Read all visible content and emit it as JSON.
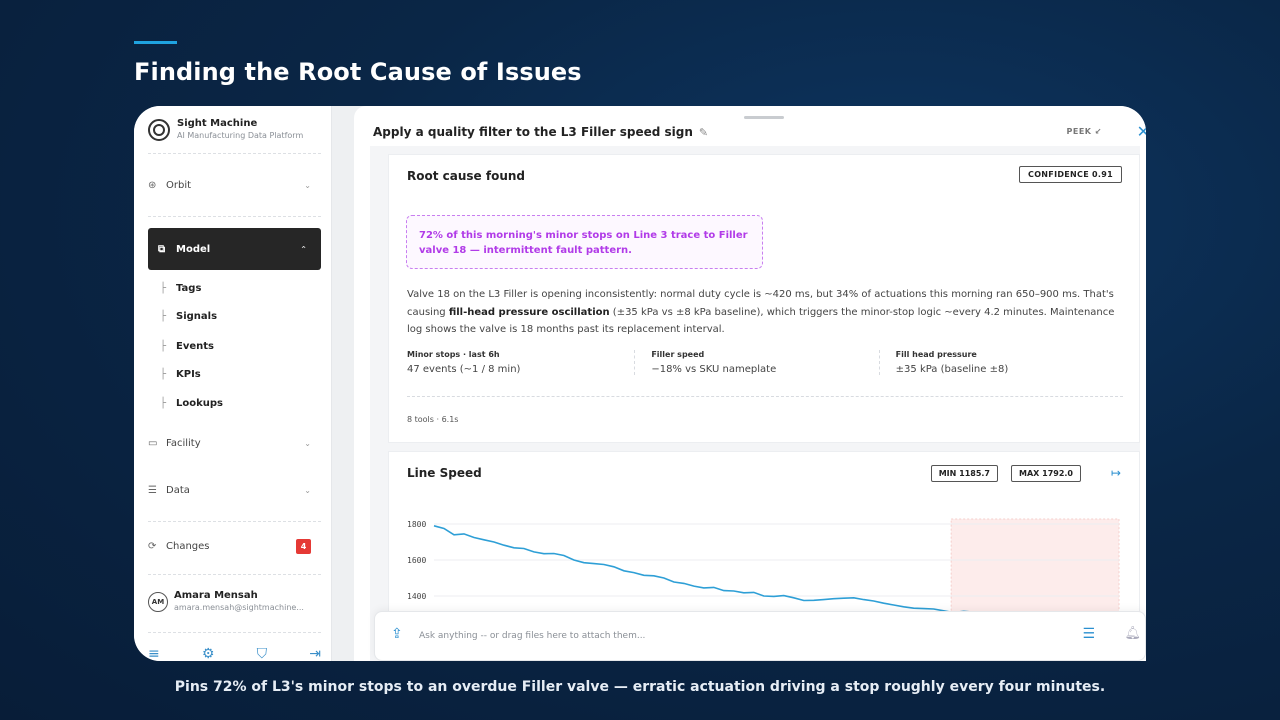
{
  "slide": {
    "title": "Finding the Root Cause of Issues",
    "caption": "Pins 72% of L3's minor stops to an overdue Filler valve — erratic actuation driving a stop roughly every four minutes."
  },
  "sidebar": {
    "brand_name": "Sight Machine",
    "brand_sub": "AI Manufacturing Data Platform",
    "orbit": "Orbit",
    "model": "Model",
    "model_items": [
      "Tags",
      "Signals",
      "Events",
      "KPIs",
      "Lookups"
    ],
    "facility": "Facility",
    "data": "Data",
    "changes": "Changes",
    "changes_badge": "4",
    "user_initials": "AM",
    "user_name": "Amara Mensah",
    "user_email": "amara.mensah@sightmachine..."
  },
  "topbar": {
    "title": "Apply a quality filter to the L3 Filler speed sign",
    "peek": "PEEK ↙"
  },
  "root_cause": {
    "heading": "Root cause found",
    "confidence": "CONFIDENCE 0.91",
    "highlight": "72% of this morning's minor stops on Line 3 trace to Filler valve 18 — intermittent fault pattern.",
    "body_1": "Valve 18 on the L3 Filler is opening inconsistently: normal duty cycle is ~420 ms, but 34% of actuations this morning ran 650–900 ms. That's causing ",
    "body_bold": "fill-head pressure oscillation",
    "body_2": " (±35 kPa vs ±8 kPa baseline), which triggers the minor-stop logic ~every 4.2 minutes. Maintenance log shows the valve is 18 months past its replacement interval.",
    "metrics": [
      {
        "label": "Minor stops · last 6h",
        "value": "47 events (~1 / 8 min)"
      },
      {
        "label": "Filler speed",
        "value": "−18% vs SKU nameplate"
      },
      {
        "label": "Fill head pressure",
        "value": "±35 kPa (baseline ±8)"
      }
    ],
    "tools": "8 tools · 6.1s"
  },
  "line_speed": {
    "heading": "Line Speed",
    "min": "MIN 1185.7",
    "max": "MAX 1792.0"
  },
  "chat": {
    "placeholder": "Ask anything -- or drag files here to attach them..."
  },
  "colors": {
    "accent": "#1fa3e0",
    "highlight_text": "#b13be8",
    "series_line": "#2e9fd6",
    "badge": "#e53935"
  },
  "chart_data": {
    "type": "line",
    "yticks": [
      "1800",
      "1600",
      "1400"
    ],
    "ylim": [
      1185.7,
      1800
    ],
    "series": [
      {
        "values": [
          1790,
          1775,
          1740,
          1745,
          1725,
          1712,
          1700,
          1682,
          1668,
          1664,
          1645,
          1635,
          1636,
          1625,
          1600,
          1585,
          1580,
          1575,
          1562,
          1540,
          1530,
          1515,
          1512,
          1500,
          1478,
          1470,
          1455,
          1445,
          1448,
          1430,
          1428,
          1418,
          1420,
          1400,
          1398,
          1402,
          1390,
          1375,
          1376,
          1380,
          1385,
          1388,
          1390,
          1380,
          1372,
          1360,
          1350,
          1340,
          1332,
          1330,
          1328,
          1318,
          1308,
          1315,
          1310,
          1305,
          1298,
          1300,
          1295,
          1290,
          1282,
          1270
        ]
      }
    ],
    "anomaly_window": [
      0.755,
      1.0
    ]
  }
}
